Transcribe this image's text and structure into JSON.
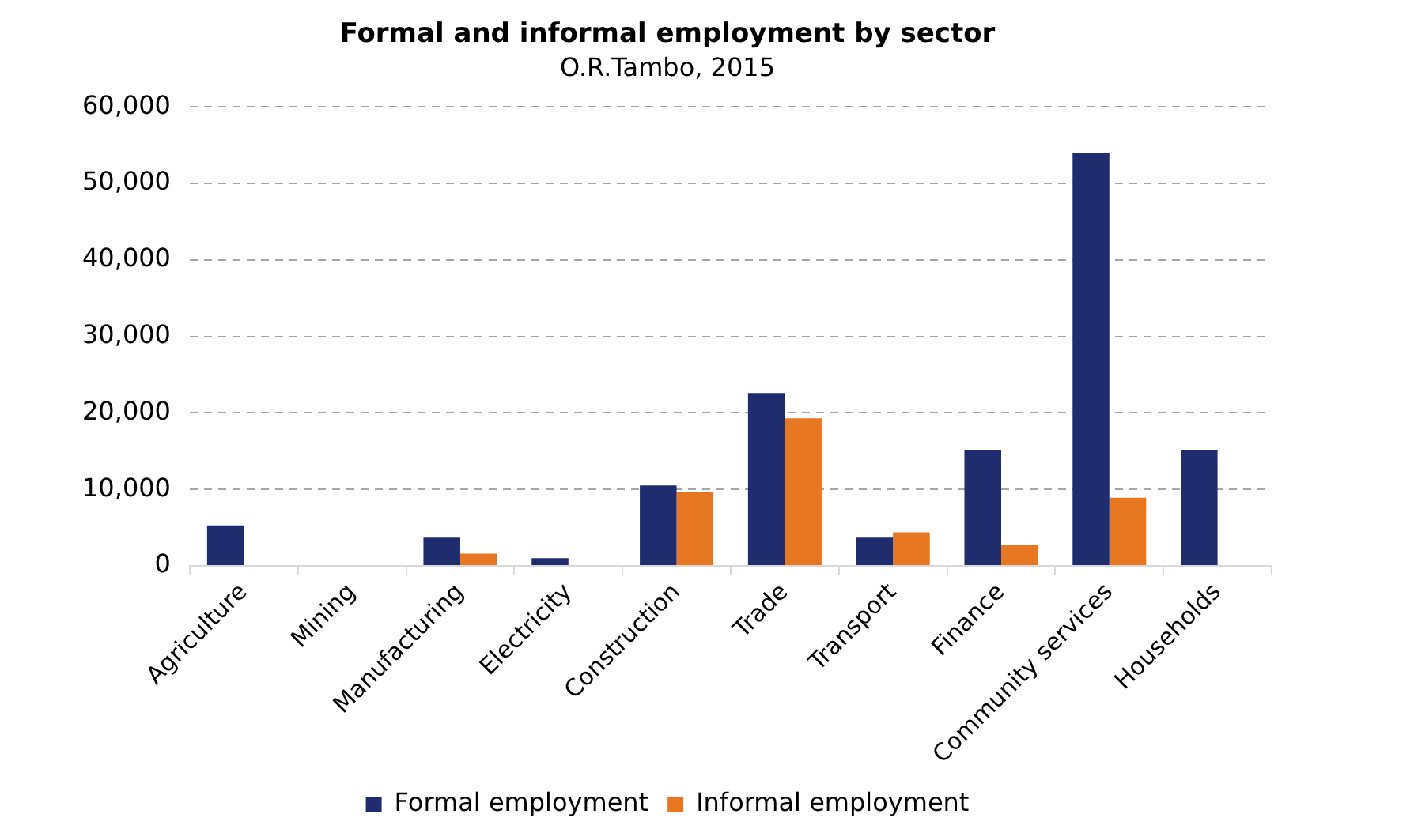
{
  "chart_data": {
    "type": "bar",
    "title": "Formal and informal employment by sector",
    "subtitle": "O.R.Tambo, 2015",
    "categories": [
      "Agriculture",
      "Mining",
      "Manufacturing",
      "Electricity",
      "Construction",
      "Trade",
      "Transport",
      "Finance",
      "Community services",
      "Households"
    ],
    "series": [
      {
        "name": "Formal employment",
        "color": "#1f2d6e",
        "values": [
          5300,
          0,
          3700,
          1000,
          10500,
          22600,
          3700,
          15100,
          54000,
          15100
        ]
      },
      {
        "name": "Informal employment",
        "color": "#e87722",
        "values": [
          0,
          0,
          1600,
          0,
          9700,
          19300,
          4400,
          2800,
          8900,
          0
        ]
      }
    ],
    "ylim": [
      0,
      60000
    ],
    "yticks": [
      {
        "value": 0,
        "label": "0"
      },
      {
        "value": 10000,
        "label": "10,000"
      },
      {
        "value": 20000,
        "label": "20,000"
      },
      {
        "value": 30000,
        "label": "30,000"
      },
      {
        "value": 40000,
        "label": "40,000"
      },
      {
        "value": 50000,
        "label": "50,000"
      },
      {
        "value": 60000,
        "label": "60,000"
      }
    ],
    "grid": "y",
    "legend": "bottom"
  }
}
